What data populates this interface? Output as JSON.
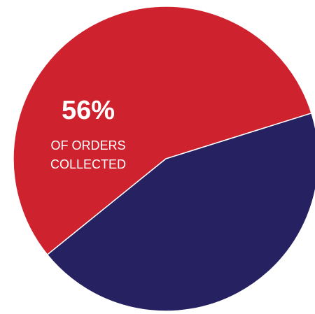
{
  "chart_data": {
    "type": "pie",
    "slices": [
      {
        "value": 56,
        "color": "#cf222f"
      },
      {
        "value": 44,
        "color": "#262262"
      }
    ],
    "annotation": {
      "value_text": "56%",
      "lines": [
        "OF ORDERS",
        "COLLECTED"
      ],
      "color": "#ffffff"
    },
    "grid": false,
    "legend": "none"
  }
}
